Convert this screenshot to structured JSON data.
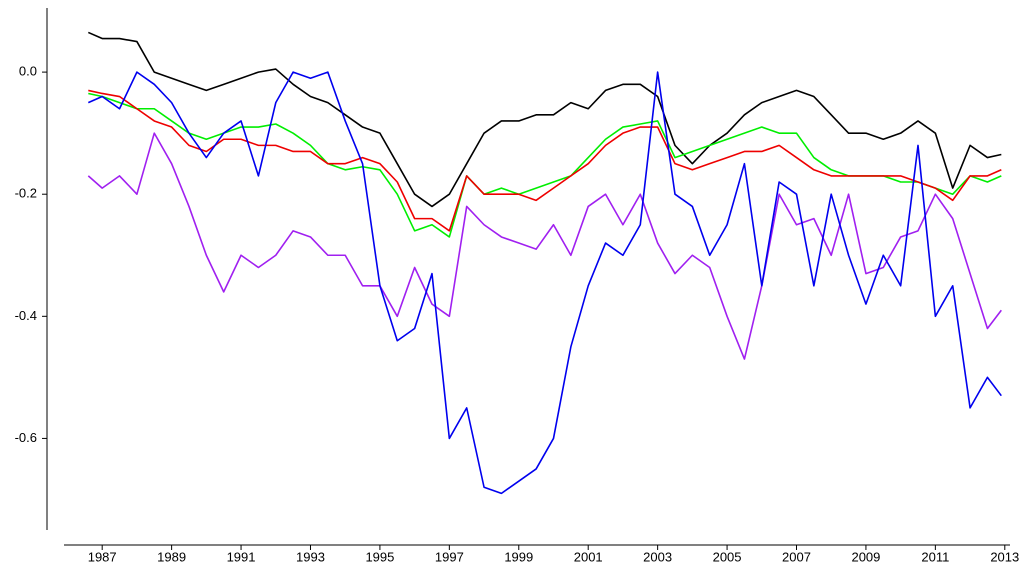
{
  "chart_data": {
    "type": "line",
    "x": [
      1986.6,
      1987.0,
      1987.5,
      1988.0,
      1988.5,
      1989.0,
      1989.5,
      1990.0,
      1990.5,
      1991.0,
      1991.5,
      1992.0,
      1992.5,
      1993.0,
      1993.5,
      1994.0,
      1994.5,
      1995.0,
      1995.5,
      1996.0,
      1996.5,
      1997.0,
      1997.5,
      1998.0,
      1998.5,
      1999.0,
      1999.5,
      2000.0,
      2000.5,
      2001.0,
      2001.5,
      2002.0,
      2002.5,
      2003.0,
      2003.5,
      2004.0,
      2004.5,
      2005.0,
      2005.5,
      2006.0,
      2006.5,
      2007.0,
      2007.5,
      2008.0,
      2008.5,
      2009.0,
      2009.5,
      2010.0,
      2010.5,
      2011.0,
      2011.5,
      2012.0,
      2012.5,
      2012.9
    ],
    "series": [
      {
        "color": "#000000",
        "values": [
          0.065,
          0.055,
          0.055,
          0.05,
          0.0,
          -0.01,
          -0.02,
          -0.03,
          -0.02,
          -0.01,
          0.0,
          0.005,
          -0.02,
          -0.04,
          -0.05,
          -0.07,
          -0.09,
          -0.1,
          -0.15,
          -0.2,
          -0.22,
          -0.2,
          -0.15,
          -0.1,
          -0.08,
          -0.08,
          -0.07,
          -0.07,
          -0.05,
          -0.06,
          -0.03,
          -0.02,
          -0.02,
          -0.04,
          -0.12,
          -0.15,
          -0.12,
          -0.1,
          -0.07,
          -0.05,
          -0.04,
          -0.03,
          -0.04,
          -0.07,
          -0.1,
          -0.1,
          -0.11,
          -0.1,
          -0.08,
          -0.1,
          -0.19,
          -0.12,
          -0.14,
          -0.135
        ]
      },
      {
        "color": "#00ee00",
        "values": [
          -0.035,
          -0.04,
          -0.05,
          -0.06,
          -0.06,
          -0.08,
          -0.1,
          -0.11,
          -0.1,
          -0.09,
          -0.09,
          -0.085,
          -0.1,
          -0.12,
          -0.15,
          -0.16,
          -0.155,
          -0.16,
          -0.2,
          -0.26,
          -0.25,
          -0.27,
          -0.17,
          -0.2,
          -0.19,
          -0.2,
          -0.19,
          -0.18,
          -0.17,
          -0.14,
          -0.11,
          -0.09,
          -0.085,
          -0.08,
          -0.14,
          -0.13,
          -0.12,
          -0.11,
          -0.1,
          -0.09,
          -0.1,
          -0.1,
          -0.14,
          -0.16,
          -0.17,
          -0.17,
          -0.17,
          -0.18,
          -0.18,
          -0.19,
          -0.2,
          -0.17,
          -0.18,
          -0.17
        ]
      },
      {
        "color": "#ee0000",
        "values": [
          -0.03,
          -0.035,
          -0.04,
          -0.06,
          -0.08,
          -0.09,
          -0.12,
          -0.13,
          -0.11,
          -0.11,
          -0.12,
          -0.12,
          -0.13,
          -0.13,
          -0.15,
          -0.15,
          -0.14,
          -0.15,
          -0.18,
          -0.24,
          -0.24,
          -0.26,
          -0.17,
          -0.2,
          -0.2,
          -0.2,
          -0.21,
          -0.19,
          -0.17,
          -0.15,
          -0.12,
          -0.1,
          -0.09,
          -0.09,
          -0.15,
          -0.16,
          -0.15,
          -0.14,
          -0.13,
          -0.13,
          -0.12,
          -0.14,
          -0.16,
          -0.17,
          -0.17,
          -0.17,
          -0.17,
          -0.17,
          -0.18,
          -0.19,
          -0.21,
          -0.17,
          -0.17,
          -0.16
        ]
      },
      {
        "color": "#a020f0",
        "values": [
          -0.17,
          -0.19,
          -0.17,
          -0.2,
          -0.1,
          -0.15,
          -0.22,
          -0.3,
          -0.36,
          -0.3,
          -0.32,
          -0.3,
          -0.26,
          -0.27,
          -0.3,
          -0.3,
          -0.35,
          -0.35,
          -0.4,
          -0.32,
          -0.38,
          -0.4,
          -0.22,
          -0.25,
          -0.27,
          -0.28,
          -0.29,
          -0.25,
          -0.3,
          -0.22,
          -0.2,
          -0.25,
          -0.2,
          -0.28,
          -0.33,
          -0.3,
          -0.32,
          -0.4,
          -0.47,
          -0.35,
          -0.2,
          -0.25,
          -0.24,
          -0.3,
          -0.2,
          -0.33,
          -0.32,
          -0.27,
          -0.26,
          -0.2,
          -0.24,
          -0.33,
          -0.42,
          -0.39
        ]
      },
      {
        "color": "#0000ee",
        "values": [
          -0.05,
          -0.04,
          -0.06,
          0.0,
          -0.02,
          -0.05,
          -0.1,
          -0.14,
          -0.1,
          -0.08,
          -0.17,
          -0.05,
          0.0,
          -0.01,
          0.0,
          -0.08,
          -0.15,
          -0.35,
          -0.44,
          -0.42,
          -0.33,
          -0.6,
          -0.55,
          -0.68,
          -0.69,
          -0.67,
          -0.65,
          -0.6,
          -0.45,
          -0.35,
          -0.28,
          -0.3,
          -0.25,
          0.0,
          -0.2,
          -0.22,
          -0.3,
          -0.25,
          -0.15,
          -0.35,
          -0.18,
          -0.2,
          -0.35,
          -0.2,
          -0.3,
          -0.38,
          -0.3,
          -0.35,
          -0.12,
          -0.4,
          -0.35,
          -0.55,
          -0.5,
          -0.53
        ]
      }
    ],
    "xlim": [
      1985.9,
      2013.15
    ],
    "xticks": [
      1987,
      1989,
      1991,
      1993,
      1995,
      1997,
      1999,
      2001,
      2003,
      2005,
      2007,
      2009,
      2011,
      2013
    ],
    "ylim": [
      -0.75,
      0.105
    ],
    "yticks": [
      {
        "value": 0,
        "label": "0.0"
      },
      -0.2,
      -0.4,
      -0.6
    ]
  }
}
